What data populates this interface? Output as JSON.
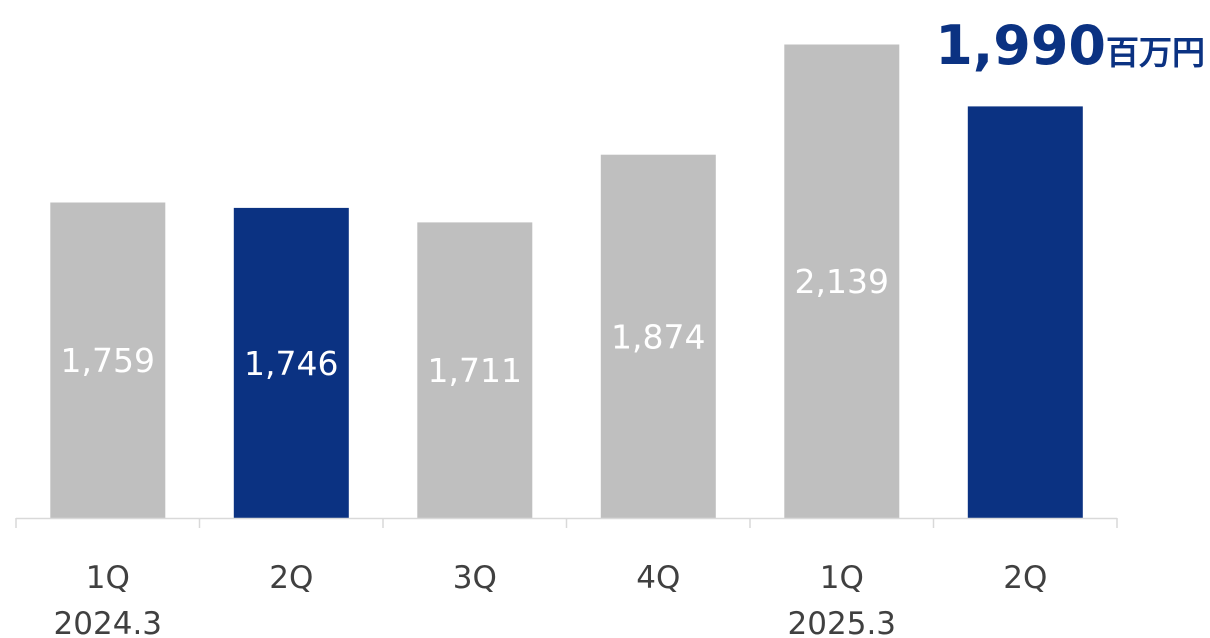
{
  "colors": {
    "default_bar": "#bfbfbf",
    "highlight_bar": "#0b3282",
    "axis": "#d9d9d9",
    "tick_text": "#404040",
    "bar_label_text": "#ffffff"
  },
  "chart_data": {
    "type": "bar",
    "categories": [
      "1Q",
      "2Q",
      "3Q",
      "4Q",
      "1Q",
      "2Q"
    ],
    "periods": [
      {
        "label": "2024.3",
        "start": 0,
        "end": 3
      },
      {
        "label": "2025.3",
        "start": 4,
        "end": 5
      }
    ],
    "series": [
      {
        "values": [
          1759,
          1746,
          1711,
          1874,
          2139,
          1990
        ],
        "value_labels": [
          "1,759",
          "1,746",
          "1,711",
          "1,874",
          "2,139",
          ""
        ],
        "highlight": [
          false,
          true,
          false,
          false,
          false,
          true
        ]
      }
    ],
    "callout": {
      "value": "1,990",
      "unit": "百万円"
    },
    "ylim": [
      0,
      2200
    ],
    "grid": false,
    "legend": "none"
  }
}
